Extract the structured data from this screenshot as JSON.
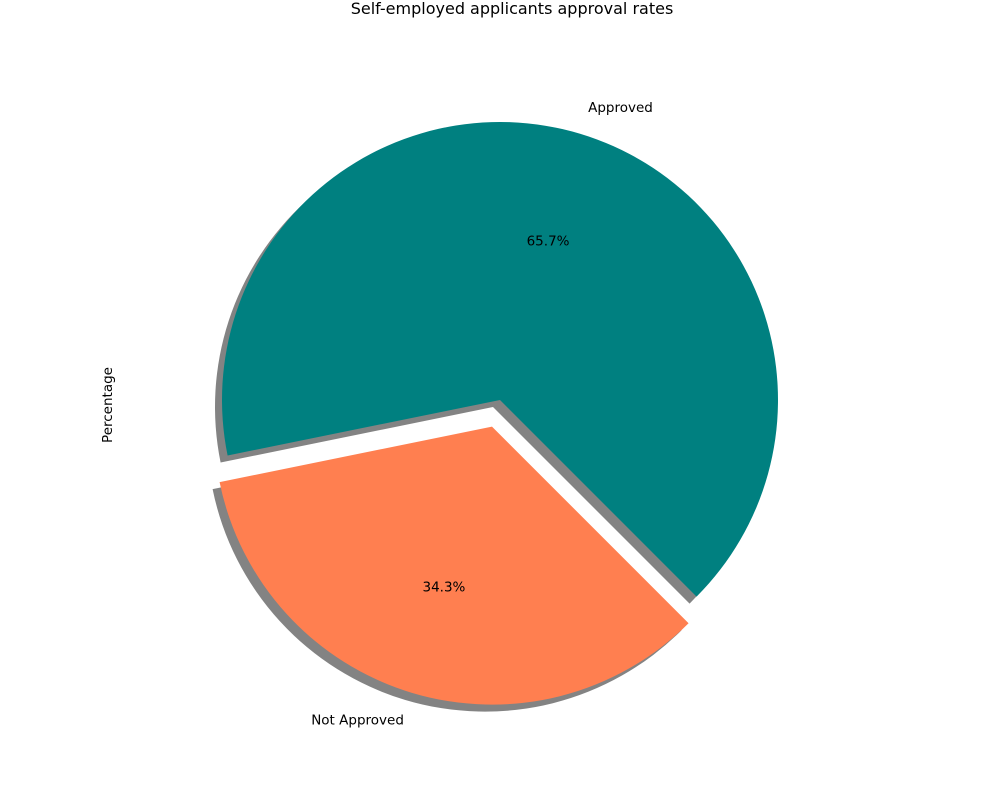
{
  "chart_data": {
    "type": "pie",
    "title": "Self-employed applicants approval rates",
    "ylabel": "Percentage",
    "xlabel": "",
    "shadow": true,
    "startangle_deg": -45,
    "slices": [
      {
        "label": "Approved",
        "value": 65.7,
        "pct_label": "65.7%",
        "color": "#008080",
        "explode": 0
      },
      {
        "label": "Not Approved",
        "value": 34.3,
        "pct_label": "34.3%",
        "color": "#FF7F50",
        "explode": 0.1
      }
    ],
    "shadow_color": "#5a5a5a"
  }
}
